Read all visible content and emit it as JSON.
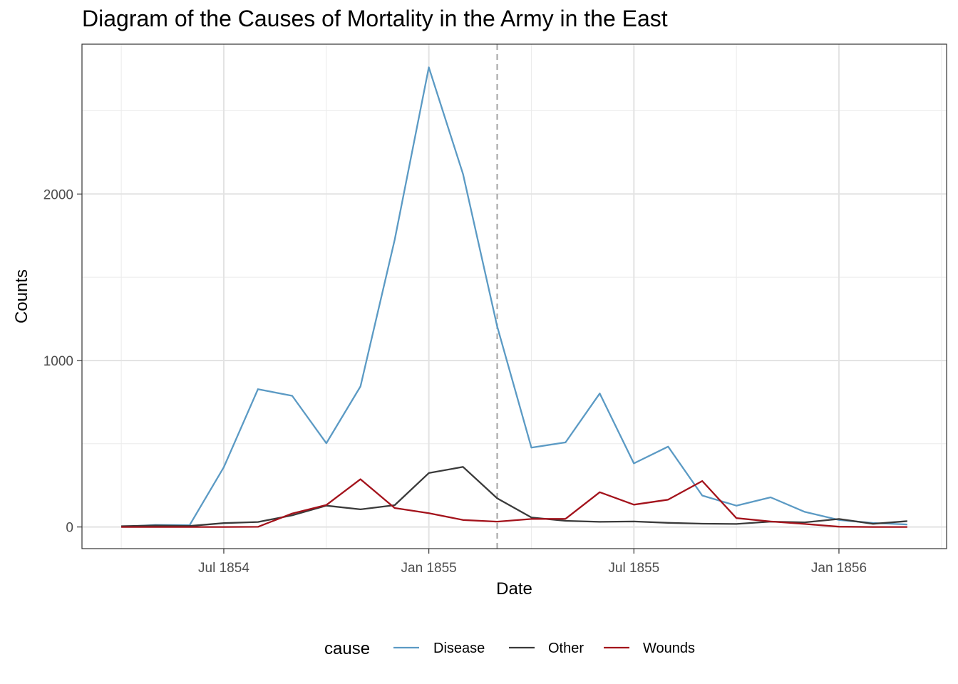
{
  "chart_data": {
    "type": "line",
    "title": "Diagram of the Causes of Mortality in the Army in the East",
    "xlabel": "Date",
    "ylabel": "Counts",
    "x": [
      "1854-04",
      "1854-05",
      "1854-06",
      "1854-07",
      "1854-08",
      "1854-09",
      "1854-10",
      "1854-11",
      "1854-12",
      "1855-01",
      "1855-02",
      "1855-03",
      "1855-04",
      "1855-05",
      "1855-06",
      "1855-07",
      "1855-08",
      "1855-09",
      "1855-10",
      "1855-11",
      "1855-12",
      "1856-01",
      "1856-02",
      "1856-03"
    ],
    "x_ticks": [
      {
        "date": "1854-07",
        "label": "Jul 1854"
      },
      {
        "date": "1855-01",
        "label": "Jan 1855"
      },
      {
        "date": "1855-07",
        "label": "Jul 1855"
      },
      {
        "date": "1856-01",
        "label": "Jan 1856"
      }
    ],
    "y_ticks": [
      0,
      1000,
      2000
    ],
    "ylim": [
      -130,
      2900
    ],
    "reference_line": {
      "date": "1855-03",
      "style": "dashed",
      "color": "#AAAAAA"
    },
    "legend": {
      "title": "cause",
      "position": "bottom"
    },
    "grid": true,
    "series": [
      {
        "name": "Disease",
        "color": "#5B9AC4",
        "values": [
          1,
          12,
          11,
          359,
          828,
          788,
          503,
          844,
          1725,
          2761,
          2120,
          1205,
          477,
          508,
          802,
          382,
          483,
          189,
          128,
          178,
          91,
          42,
          24,
          15
        ]
      },
      {
        "name": "Other",
        "color": "#3A3A3A",
        "values": [
          5,
          9,
          6,
          23,
          30,
          70,
          128,
          106,
          131,
          324,
          361,
          172,
          57,
          37,
          31,
          33,
          25,
          20,
          18,
          32,
          28,
          48,
          19,
          35
        ]
      },
      {
        "name": "Wounds",
        "color": "#A3121B",
        "values": [
          0,
          0,
          0,
          0,
          1,
          81,
          132,
          287,
          114,
          83,
          42,
          32,
          48,
          49,
          209,
          134,
          164,
          276,
          53,
          33,
          18,
          2,
          0,
          0
        ]
      }
    ]
  }
}
